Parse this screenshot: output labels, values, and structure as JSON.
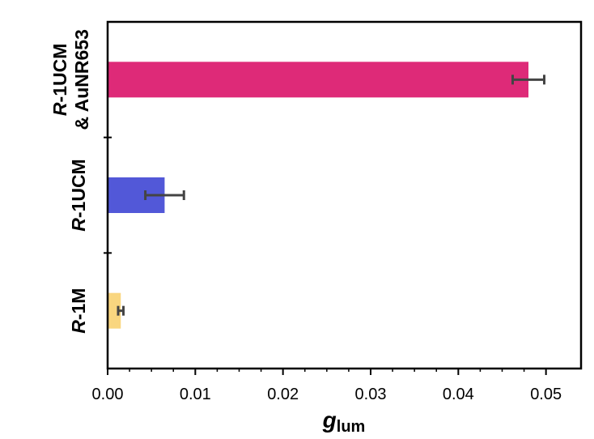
{
  "chart_data": {
    "type": "bar",
    "orientation": "horizontal",
    "categories": [
      {
        "prefix": "R",
        "rest": "-1M"
      },
      {
        "prefix": "R",
        "rest": "-1UCM"
      },
      {
        "prefix": "R",
        "rest": "-1UCM",
        "line2": "& AuNR653"
      }
    ],
    "values": [
      0.0015,
      0.0065,
      0.048
    ],
    "errors": [
      0.0003,
      0.0022,
      0.0018
    ],
    "colors": [
      "#f9d67f",
      "#5258d8",
      "#de2a78"
    ],
    "xlabel": {
      "main": "g",
      "sub": "lum"
    },
    "xlim": [
      0,
      0.054
    ],
    "xticks": [
      "0.00",
      "0.01",
      "0.02",
      "0.03",
      "0.04",
      "0.05"
    ],
    "grid": false,
    "legend": "none"
  }
}
